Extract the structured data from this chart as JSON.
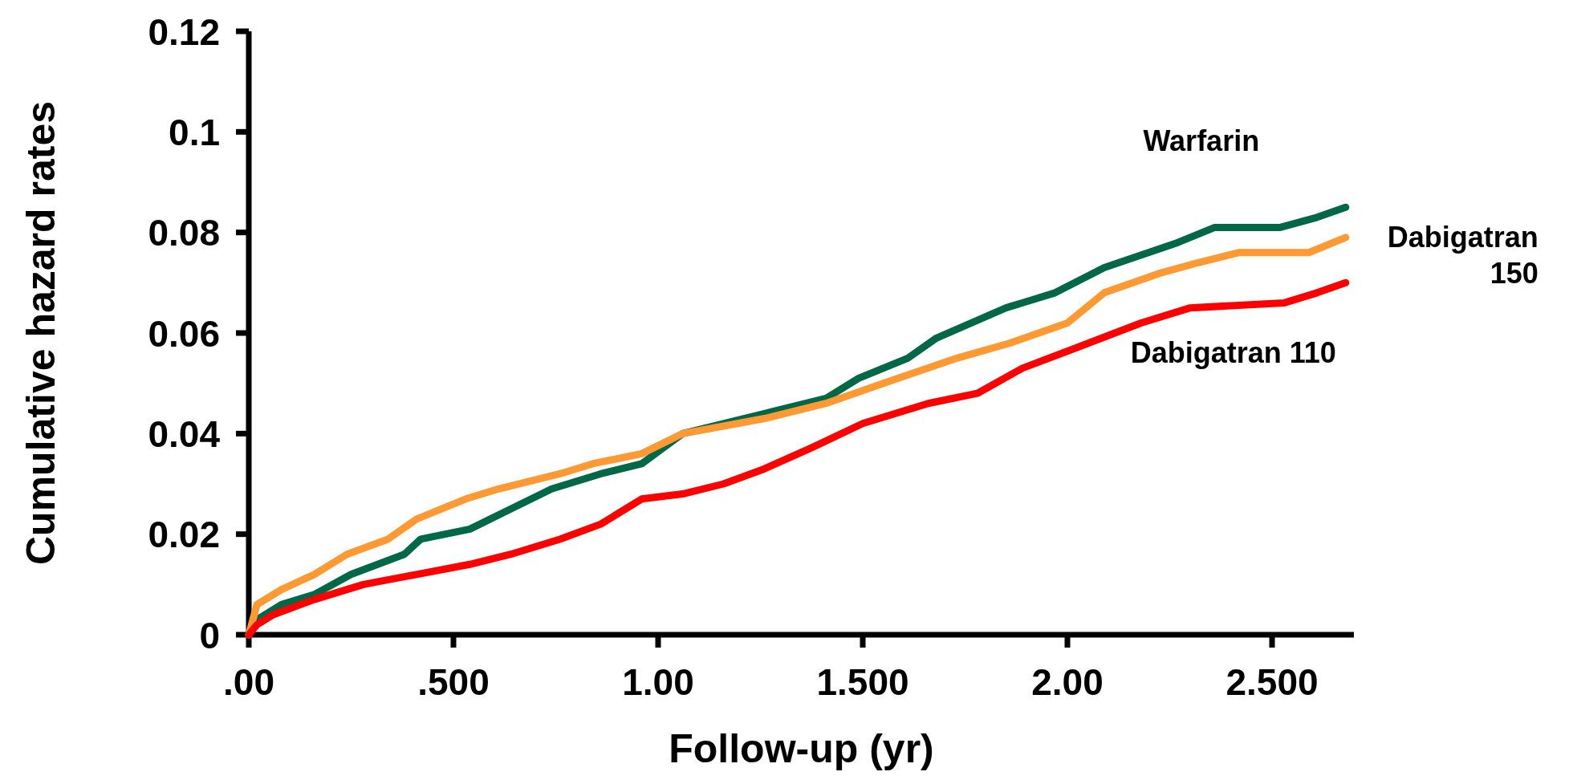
{
  "chart_data": {
    "type": "line",
    "xlabel": "Follow-up (yr)",
    "ylabel": "Cumulative hazard rates",
    "xlim": [
      0,
      2.7
    ],
    "xticks": [
      {
        "value": 0,
        "label": ".00"
      },
      {
        "value": 0.5,
        "label": ".500"
      },
      {
        "value": 1,
        "label": "1.00"
      },
      {
        "value": 1.5,
        "label": "1.500"
      },
      {
        "value": 2,
        "label": "2.00"
      },
      {
        "value": 2.5,
        "label": "2.500"
      }
    ],
    "ylim": [
      0,
      0.12
    ],
    "yticks": [
      0,
      0.02,
      0.04,
      0.06,
      0.08,
      0.1,
      0.12
    ],
    "grid": false,
    "legend": false,
    "marker": "none",
    "line_style": "solid",
    "series": [
      {
        "name": "Warfarin",
        "color": "#006847",
        "x": [
          0,
          0.02,
          0.08,
          0.16,
          0.25,
          0.38,
          0.42,
          0.54,
          0.64,
          0.74,
          0.86,
          0.96,
          1.06,
          1.26,
          1.41,
          1.49,
          1.61,
          1.68,
          1.85,
          1.97,
          2.09,
          2.27,
          2.36,
          2.52,
          2.61,
          2.68
        ],
        "values": [
          0,
          0.003,
          0.006,
          0.008,
          0.012,
          0.016,
          0.019,
          0.021,
          0.025,
          0.029,
          0.032,
          0.034,
          0.04,
          0.044,
          0.047,
          0.051,
          0.055,
          0.059,
          0.065,
          0.068,
          0.073,
          0.078,
          0.081,
          0.081,
          0.083,
          0.085
        ]
      },
      {
        "name": "Dabigatran 150",
        "color": "#ff9933",
        "x": [
          0,
          0.02,
          0.08,
          0.16,
          0.24,
          0.34,
          0.41,
          0.53,
          0.61,
          0.76,
          0.84,
          0.96,
          1.06,
          1.26,
          1.41,
          1.55,
          1.73,
          1.86,
          2,
          2.09,
          2.23,
          2.32,
          2.42,
          2.59,
          2.68
        ],
        "values": [
          0,
          0.006,
          0.009,
          0.012,
          0.016,
          0.019,
          0.023,
          0.027,
          0.029,
          0.032,
          0.034,
          0.036,
          0.04,
          0.043,
          0.046,
          0.05,
          0.055,
          0.058,
          0.062,
          0.068,
          0.072,
          0.074,
          0.076,
          0.076,
          0.079
        ]
      },
      {
        "name": "Dabigatran 110",
        "color": "#ff0000",
        "x": [
          0,
          0.02,
          0.06,
          0.16,
          0.28,
          0.41,
          0.54,
          0.64,
          0.76,
          0.86,
          0.96,
          1.06,
          1.16,
          1.26,
          1.37,
          1.5,
          1.66,
          1.78,
          1.89,
          2.02,
          2.18,
          2.3,
          2.53,
          2.61,
          2.68
        ],
        "values": [
          0,
          0.002,
          0.004,
          0.007,
          0.01,
          0.012,
          0.014,
          0.016,
          0.019,
          0.022,
          0.027,
          0.028,
          0.03,
          0.033,
          0.037,
          0.042,
          0.046,
          0.048,
          0.053,
          0.057,
          0.062,
          0.065,
          0.066,
          0.068,
          0.07
        ]
      }
    ]
  }
}
